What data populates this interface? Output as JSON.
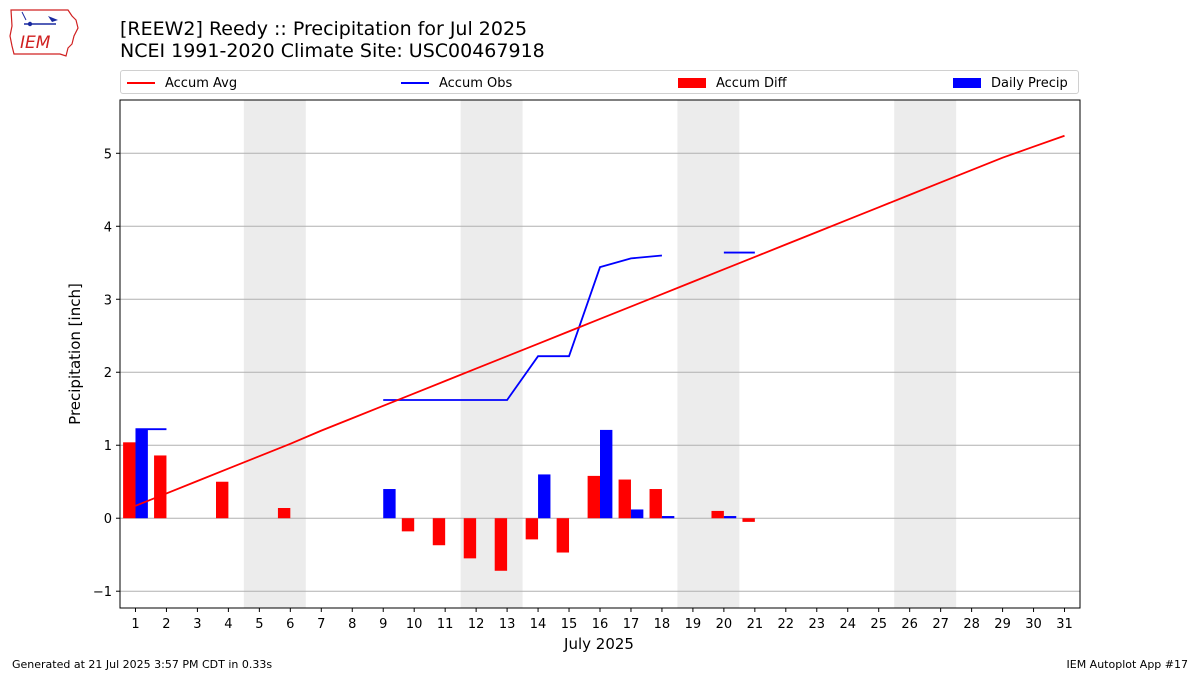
{
  "header": {
    "title_line1": "[REEW2] Reedy :: Precipitation for Jul 2025",
    "title_line2": "NCEI 1991-2020 Climate Site: USC00467918",
    "logo_text": "IEM"
  },
  "footer": {
    "left": "Generated at 21 Jul 2025 3:57 PM CDT in 0.33s",
    "right": "IEM Autoplot App #17"
  },
  "chart_data": {
    "type": "bar",
    "xlabel": "July 2025",
    "ylabel": "Precipitation [inch]",
    "ylim": [
      -1.23,
      5.73
    ],
    "xlim": [
      0.5,
      31.5
    ],
    "yticks": [
      -1,
      0,
      1,
      2,
      3,
      4,
      5
    ],
    "days": [
      1,
      2,
      3,
      4,
      5,
      6,
      7,
      8,
      9,
      10,
      11,
      12,
      13,
      14,
      15,
      16,
      17,
      18,
      19,
      20,
      21,
      22,
      23,
      24,
      25,
      26,
      27,
      28,
      29,
      30,
      31
    ],
    "grid": "horizontal",
    "legend_placement": "top",
    "weekend_shading": [
      [
        5,
        6
      ],
      [
        12,
        13
      ],
      [
        19,
        20
      ],
      [
        26,
        27
      ]
    ],
    "series": [
      {
        "name": "Accum Avg",
        "kind": "line",
        "color": "#ff0000",
        "values": [
          0.17,
          0.34,
          0.51,
          0.68,
          0.85,
          1.02,
          1.2,
          1.37,
          1.54,
          1.71,
          1.88,
          2.05,
          2.22,
          2.39,
          2.56,
          2.73,
          2.9,
          3.07,
          3.24,
          3.41,
          3.58,
          3.75,
          3.92,
          4.09,
          4.26,
          4.43,
          4.6,
          4.77,
          4.94,
          5.09,
          5.24
        ]
      },
      {
        "name": "Accum Obs",
        "kind": "line",
        "color": "#0000ff",
        "values": [
          1.22,
          1.22,
          null,
          null,
          null,
          null,
          null,
          null,
          1.62,
          1.62,
          1.62,
          1.62,
          1.62,
          2.22,
          2.22,
          3.44,
          3.56,
          3.6,
          null,
          3.64,
          3.64,
          null,
          null,
          null,
          null,
          null,
          null,
          null,
          null,
          null,
          null
        ]
      },
      {
        "name": "Accum Diff",
        "kind": "bar",
        "color": "#ff0000",
        "values": [
          1.04,
          0.86,
          null,
          0.5,
          null,
          0.14,
          null,
          null,
          null,
          -0.18,
          -0.37,
          -0.55,
          -0.72,
          -0.29,
          -0.47,
          0.58,
          0.53,
          0.4,
          null,
          0.1,
          -0.05,
          null,
          null,
          null,
          null,
          null,
          null,
          null,
          null,
          null,
          null
        ]
      },
      {
        "name": "Daily Precip",
        "kind": "bar",
        "color": "#0000ff",
        "values": [
          1.22,
          null,
          null,
          null,
          null,
          null,
          null,
          null,
          0.4,
          null,
          null,
          null,
          null,
          0.6,
          null,
          1.21,
          0.12,
          0.03,
          null,
          0.03,
          null,
          null,
          null,
          null,
          null,
          null,
          null,
          null,
          null,
          null,
          null
        ]
      }
    ]
  }
}
